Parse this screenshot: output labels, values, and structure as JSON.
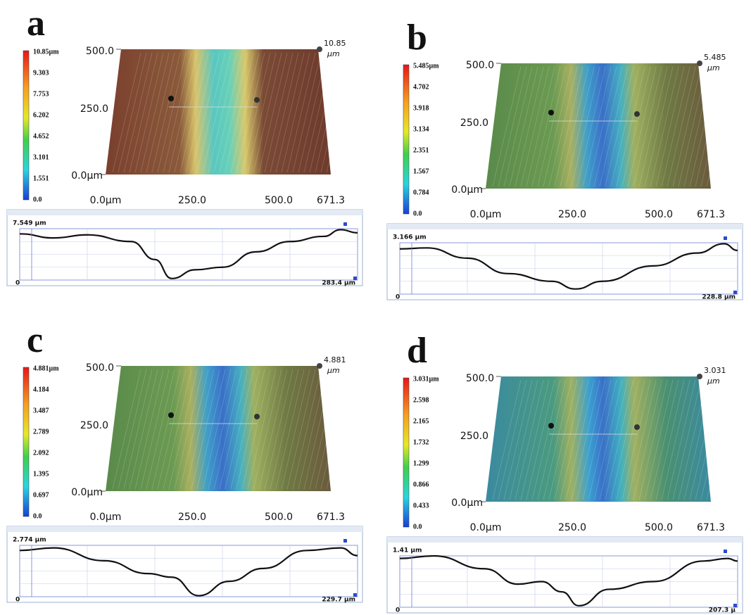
{
  "panels": [
    {
      "label": "a",
      "colorbar": [
        "10.85µm",
        "9.303",
        "7.753",
        "6.202",
        "4.652",
        "3.101",
        "1.551",
        "0.0"
      ],
      "max_value": "10.85",
      "max_unit": "µm",
      "y_axis": [
        "500.0",
        "250.0",
        "0.0µm"
      ],
      "x_axis": [
        "0.0µm",
        "250.0",
        "500.0",
        "671.3"
      ],
      "profile": {
        "top_label": "7.549 µm",
        "origin": "0",
        "end_label": "283.4 µm"
      }
    },
    {
      "label": "b",
      "colorbar": [
        "5.485µm",
        "4.702",
        "3.918",
        "3.134",
        "2.351",
        "1.567",
        "0.784",
        "0.0"
      ],
      "max_value": "5.485",
      "max_unit": "µm",
      "y_axis": [
        "500.0",
        "250.0",
        "0.0µm"
      ],
      "x_axis": [
        "0.0µm",
        "250.0",
        "500.0",
        "671.3"
      ],
      "profile": {
        "top_label": "3.166 µm",
        "origin": "0",
        "end_label": "228.8 µm"
      }
    },
    {
      "label": "c",
      "colorbar": [
        "4.881µm",
        "4.184",
        "3.487",
        "2.789",
        "2.092",
        "1.395",
        "0.697",
        "0.0"
      ],
      "max_value": "4.881",
      "max_unit": "µm",
      "y_axis": [
        "500.0",
        "250.0",
        "0.0µm"
      ],
      "x_axis": [
        "0.0µm",
        "250.0",
        "500.0",
        "671.3"
      ],
      "profile": {
        "top_label": "2.774 µm",
        "origin": "0",
        "end_label": "229.7 µm"
      }
    },
    {
      "label": "d",
      "colorbar": [
        "3.031µm",
        "2.598",
        "2.165",
        "1.732",
        "1.299",
        "0.866",
        "0.433",
        "0.0"
      ],
      "max_value": "3.031",
      "max_unit": "µm",
      "y_axis": [
        "500.0",
        "250.0",
        "0.0µm"
      ],
      "x_axis": [
        "0.0µm",
        "250.0",
        "500.0",
        "671.3"
      ],
      "profile": {
        "top_label": "1.41 µm",
        "origin": "0",
        "end_label": "207.3 µ"
      }
    }
  ]
}
